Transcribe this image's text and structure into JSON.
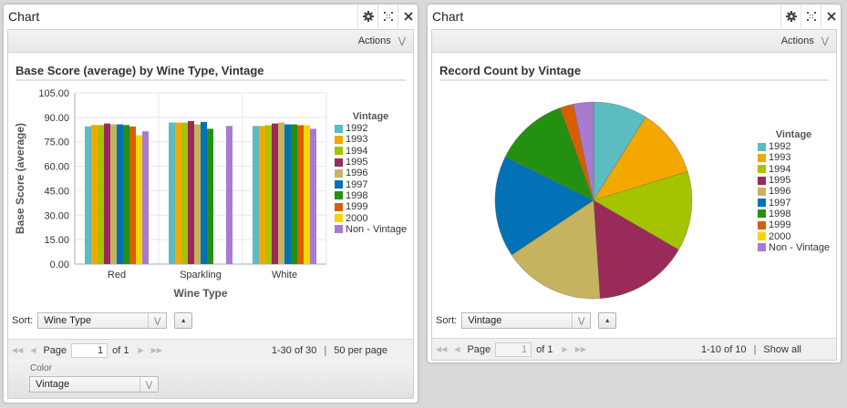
{
  "colors": {
    "1992": "#5bbcc2",
    "1993": "#f3a800",
    "1994": "#a6c300",
    "1995": "#9a2a5a",
    "1996": "#c6b35f",
    "1997": "#0371b5",
    "1998": "#239012",
    "1999": "#d95e00",
    "2000": "#f3d800",
    "Non - Vintage": "#a77bd0"
  },
  "left_panel": {
    "title": "Chart",
    "actions_label": "Actions",
    "chart_title": "Base Score (average) by Wine Type, Vintage",
    "legend_title": "Vintage",
    "sort_label": "Sort:",
    "sort_value": "Wine Type",
    "pager": {
      "page_label": "Page",
      "page_value": "1",
      "of_label": "of 1",
      "range": "1-30 of 30",
      "separator": "|",
      "per_page": "50 per page"
    },
    "color_label": "Color",
    "color_value": "Vintage"
  },
  "right_panel": {
    "title": "Chart",
    "actions_label": "Actions",
    "chart_title": "Record Count by Vintage",
    "legend_title": "Vintage",
    "sort_label": "Sort:",
    "sort_value": "Vintage",
    "pager": {
      "page_label": "Page",
      "page_value": "1",
      "of_label": "of 1",
      "range": "1-10 of 10",
      "separator": "|",
      "show_all": "Show all"
    }
  },
  "chart_data": [
    {
      "type": "bar",
      "title": "Base Score (average) by Wine Type, Vintage",
      "xlabel": "Wine Type",
      "ylabel": "Base Score (average)",
      "ylim": [
        0,
        105
      ],
      "yticks": [
        "0.00",
        "15.00",
        "30.00",
        "45.00",
        "60.00",
        "75.00",
        "90.00",
        "105.00"
      ],
      "grid": true,
      "legend_position": "right",
      "legend_title": "Vintage",
      "categories": [
        "Red",
        "Sparkling",
        "White"
      ],
      "series": [
        {
          "name": "1992",
          "values": [
            84.4,
            86.8,
            84.7
          ]
        },
        {
          "name": "1993",
          "values": [
            85.3,
            86.8,
            84.7
          ]
        },
        {
          "name": "1994",
          "values": [
            85.3,
            86.8,
            85.2
          ]
        },
        {
          "name": "1995",
          "values": [
            86.2,
            87.7,
            86.2
          ]
        },
        {
          "name": "1996",
          "values": [
            85.7,
            85.7,
            86.8
          ]
        },
        {
          "name": "1997",
          "values": [
            85.7,
            87.2,
            85.7
          ]
        },
        {
          "name": "1998",
          "values": [
            85.3,
            83.0,
            85.7
          ]
        },
        {
          "name": "1999",
          "values": [
            84.4,
            null,
            85.2
          ]
        },
        {
          "name": "2000",
          "values": [
            79.0,
            null,
            85.2
          ]
        },
        {
          "name": "Non - Vintage",
          "values": [
            81.4,
            84.7,
            83.0
          ]
        }
      ]
    },
    {
      "type": "pie",
      "title": "Record Count by Vintage",
      "legend_position": "right",
      "legend_title": "Vintage",
      "categories": [
        "1992",
        "1993",
        "1994",
        "1995",
        "1996",
        "1997",
        "1998",
        "1999",
        "2000",
        "Non - Vintage"
      ],
      "values": [
        8.9,
        11.4,
        13.1,
        15.6,
        16.7,
        16.7,
        12.2,
        2.2,
        0,
        3.3
      ],
      "value_unit": "percent of total (estimated)"
    }
  ]
}
